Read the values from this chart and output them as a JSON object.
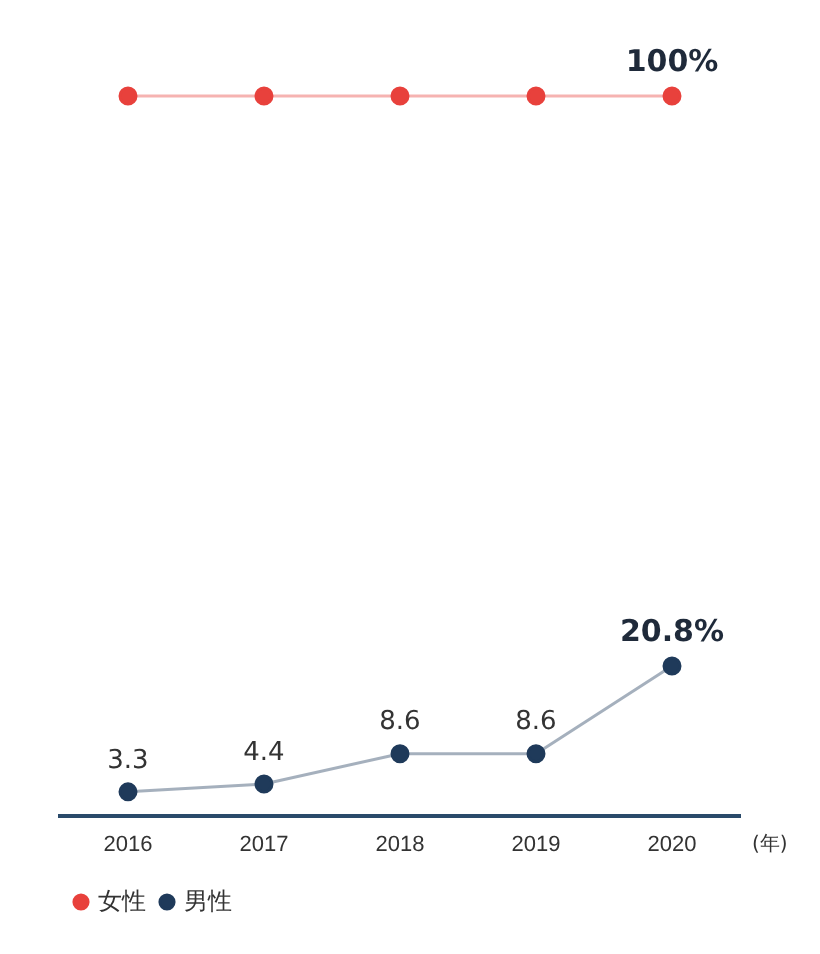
{
  "chart_data": {
    "type": "line",
    "xlabel": "(年)",
    "categories": [
      "2016",
      "2017",
      "2018",
      "2019",
      "2020"
    ],
    "series": [
      {
        "name": "女性",
        "color": "#e8413c",
        "values": [
          100,
          100,
          100,
          100,
          100
        ],
        "value_labels": [
          null,
          null,
          null,
          null,
          "100%"
        ]
      },
      {
        "name": "男性",
        "color": "#1f3a5a",
        "values": [
          3.3,
          4.4,
          8.6,
          8.6,
          20.8
        ],
        "value_labels": [
          "3.3",
          "4.4",
          "8.6",
          "8.6",
          "20.8%"
        ]
      }
    ],
    "grid": false,
    "legend": "bottom left",
    "marker": "circle",
    "line_style": "solid"
  }
}
